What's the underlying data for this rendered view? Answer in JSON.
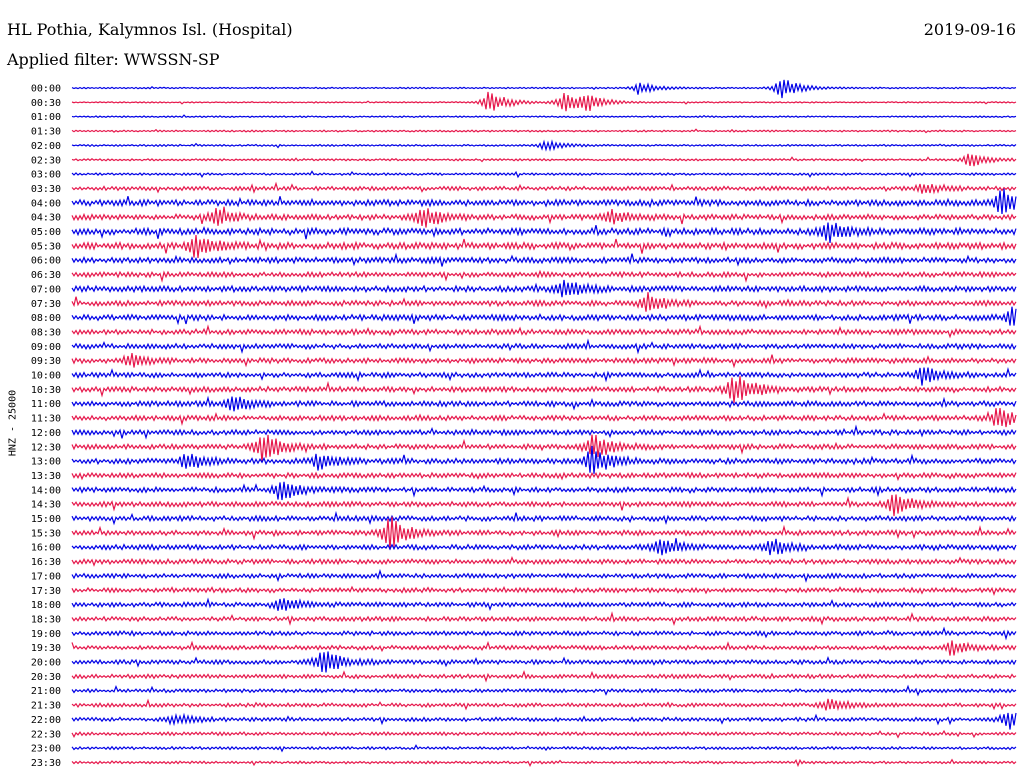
{
  "header": {
    "station": "HL Pothia, Kalymnos Isl. (Hospital)",
    "filter": "Applied filter: WWSSN-SP",
    "date": "2019-09-16"
  },
  "chart_data": {
    "type": "line",
    "title": "HL Pothia, Kalymnos Isl. (Hospital)",
    "subtitle": "Applied filter: WWSSN-SP",
    "date": "2019-09-16",
    "ylabel": "HNZ - 25000",
    "xlabel": "",
    "rows": [
      "00:00",
      "00:30",
      "01:00",
      "01:30",
      "02:00",
      "02:30",
      "03:00",
      "03:30",
      "04:00",
      "04:30",
      "05:00",
      "05:30",
      "06:00",
      "06:30",
      "07:00",
      "07:30",
      "08:00",
      "08:30",
      "09:00",
      "09:30",
      "10:00",
      "10:30",
      "11:00",
      "11:30",
      "12:00",
      "12:30",
      "13:00",
      "13:30",
      "14:00",
      "14:30",
      "15:00",
      "15:30",
      "16:00",
      "16:30",
      "17:00",
      "17:30",
      "18:00",
      "18:30",
      "19:00",
      "19:30",
      "20:00",
      "20:30",
      "21:00",
      "21:30",
      "22:00",
      "22:30",
      "23:00",
      "23:30"
    ],
    "series_colors": [
      "#0000e6",
      "#e6174b"
    ],
    "noise_levels": [
      0.6,
      0.5,
      0.6,
      0.7,
      0.7,
      0.8,
      0.9,
      1.6,
      2.4,
      2.2,
      2.6,
      2.6,
      2.2,
      2.0,
      2.3,
      2.1,
      2.3,
      2.1,
      2.0,
      2.0,
      2.0,
      2.1,
      2.1,
      2.0,
      2.0,
      2.0,
      2.1,
      2.0,
      2.0,
      2.0,
      2.0,
      2.0,
      2.0,
      1.9,
      1.8,
      1.8,
      1.8,
      1.8,
      1.7,
      1.7,
      1.7,
      1.6,
      1.4,
      1.5,
      1.5,
      1.3,
      1.1,
      1.0
    ],
    "events": [
      {
        "row": 0,
        "pos": 0.6,
        "amp": 6
      },
      {
        "row": 0,
        "pos": 0.75,
        "amp": 11
      },
      {
        "row": 1,
        "pos": 0.44,
        "amp": 12
      },
      {
        "row": 1,
        "pos": 0.52,
        "amp": 10
      },
      {
        "row": 1,
        "pos": 0.545,
        "amp": 7
      },
      {
        "row": 4,
        "pos": 0.5,
        "amp": 5
      },
      {
        "row": 5,
        "pos": 0.95,
        "amp": 7
      },
      {
        "row": 7,
        "pos": 0.9,
        "amp": 6
      },
      {
        "row": 8,
        "pos": 0.985,
        "amp": 14
      },
      {
        "row": 9,
        "pos": 0.15,
        "amp": 9
      },
      {
        "row": 9,
        "pos": 0.37,
        "amp": 11
      },
      {
        "row": 9,
        "pos": 0.57,
        "amp": 7
      },
      {
        "row": 10,
        "pos": 0.8,
        "amp": 10
      },
      {
        "row": 11,
        "pos": 0.13,
        "amp": 11
      },
      {
        "row": 14,
        "pos": 0.52,
        "amp": 9
      },
      {
        "row": 15,
        "pos": 0.61,
        "amp": 9
      },
      {
        "row": 16,
        "pos": 0.995,
        "amp": 10
      },
      {
        "row": 19,
        "pos": 0.06,
        "amp": 6
      },
      {
        "row": 20,
        "pos": 0.9,
        "amp": 9
      },
      {
        "row": 21,
        "pos": 0.7,
        "amp": 16
      },
      {
        "row": 22,
        "pos": 0.17,
        "amp": 8
      },
      {
        "row": 23,
        "pos": 0.98,
        "amp": 11
      },
      {
        "row": 25,
        "pos": 0.2,
        "amp": 16
      },
      {
        "row": 25,
        "pos": 0.55,
        "amp": 13
      },
      {
        "row": 26,
        "pos": 0.55,
        "amp": 14
      },
      {
        "row": 26,
        "pos": 0.12,
        "amp": 9
      },
      {
        "row": 26,
        "pos": 0.26,
        "amp": 8
      },
      {
        "row": 28,
        "pos": 0.22,
        "amp": 11
      },
      {
        "row": 29,
        "pos": 0.87,
        "amp": 10
      },
      {
        "row": 31,
        "pos": 0.335,
        "amp": 17
      },
      {
        "row": 32,
        "pos": 0.62,
        "amp": 9
      },
      {
        "row": 32,
        "pos": 0.74,
        "amp": 8
      },
      {
        "row": 36,
        "pos": 0.22,
        "amp": 7
      },
      {
        "row": 39,
        "pos": 0.93,
        "amp": 7
      },
      {
        "row": 40,
        "pos": 0.265,
        "amp": 14
      },
      {
        "row": 43,
        "pos": 0.8,
        "amp": 6
      },
      {
        "row": 44,
        "pos": 0.99,
        "amp": 10
      },
      {
        "row": 44,
        "pos": 0.11,
        "amp": 5
      }
    ]
  }
}
